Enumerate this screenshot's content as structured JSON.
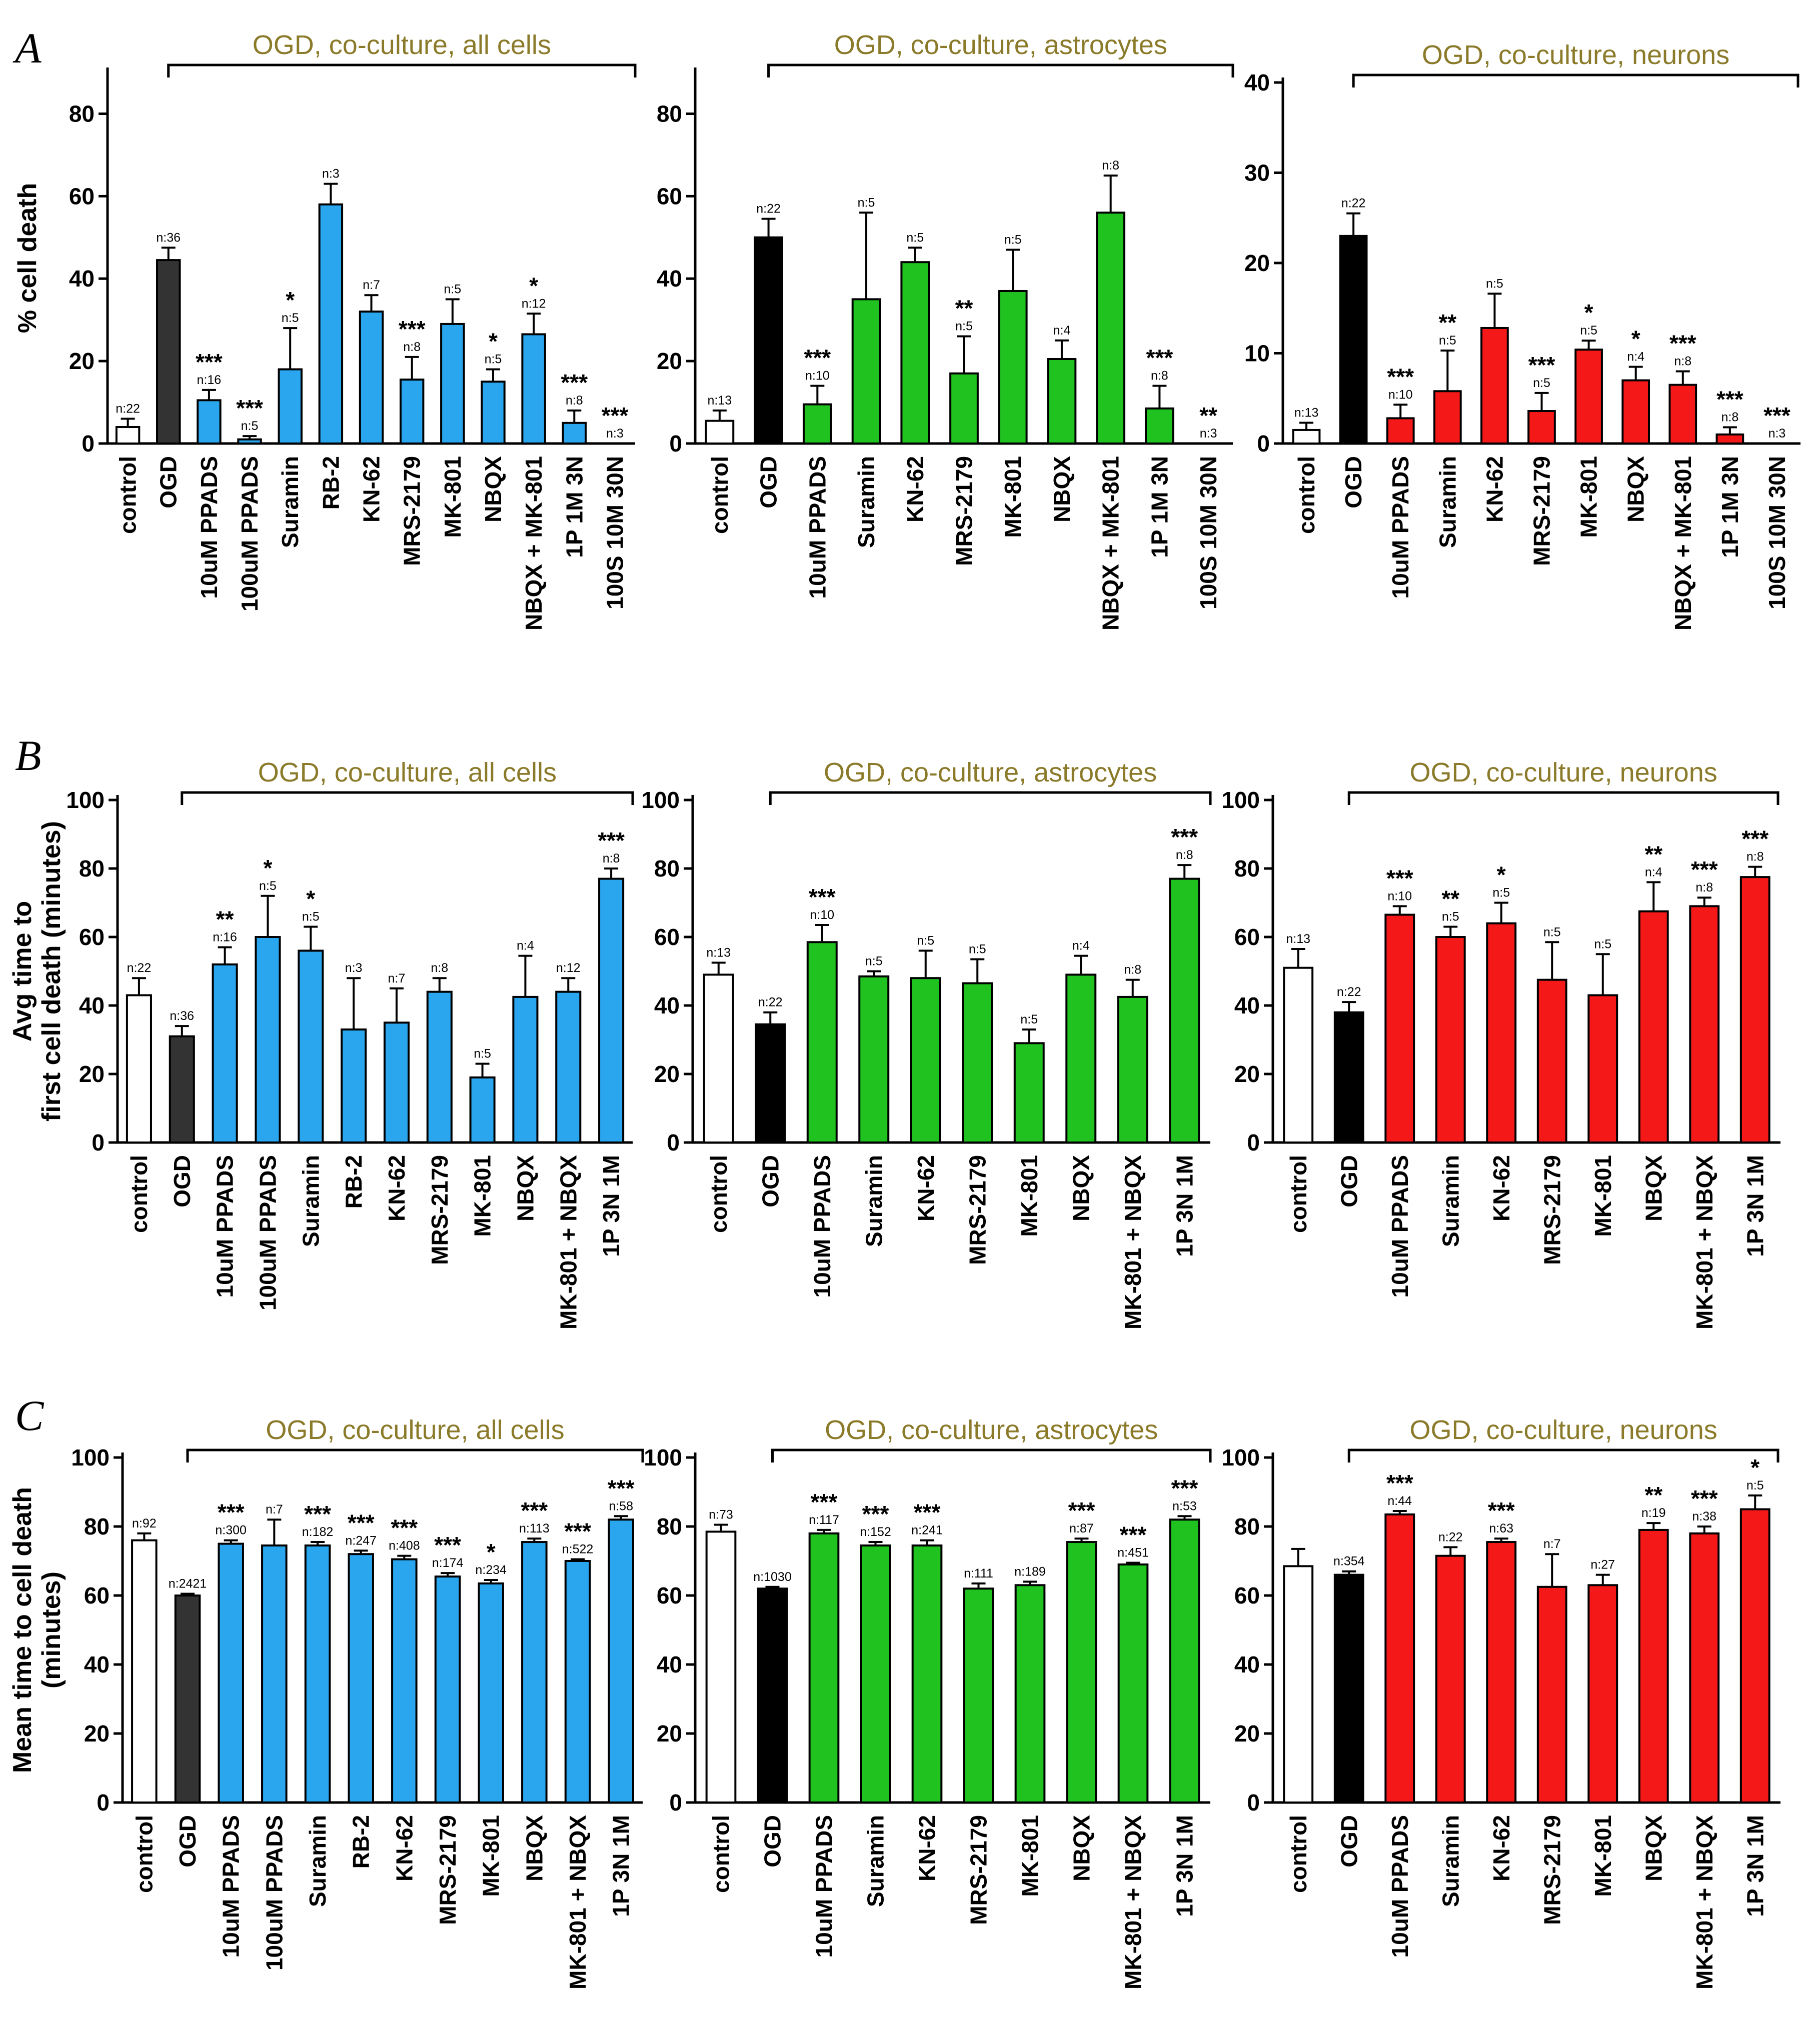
{
  "colors": {
    "blue": "#2aa6ef",
    "green": "#1fc21f",
    "red": "#f51818",
    "dark_gray": "#333333",
    "black": "#000000",
    "white": "#ffffff",
    "title": "#8a7a2a"
  },
  "figure_panels": [
    "A",
    "B",
    "C"
  ],
  "chart_data": [
    {
      "id": "A1",
      "panel": "A",
      "type": "bar",
      "title": "OGD, co-culture, all cells",
      "ylabel": "% cell death",
      "xlabel": "",
      "ylim": [
        0,
        90
      ],
      "yticks": [
        0,
        20,
        40,
        60,
        80
      ],
      "legend": "none",
      "grid": false,
      "categories": [
        "control",
        "OGD",
        "10uM PPADS",
        "100uM PPADS",
        "Suramin",
        "RB-2",
        "KN-62",
        "MRS-2179",
        "MK-801",
        "NBQX",
        "NBQX + MK-801",
        "1P 1M 3N",
        "100S 10M 30N"
      ],
      "values": [
        4,
        44.5,
        10.5,
        1,
        18,
        58,
        32,
        15.5,
        29,
        15,
        26.5,
        5,
        0
      ],
      "errors": [
        2,
        3,
        2.5,
        0.8,
        10,
        5,
        4,
        5.5,
        6,
        3,
        5,
        3,
        0
      ],
      "n": [
        "n:22",
        "n:36",
        "n:16",
        "n:5",
        "n:5",
        "n:3",
        "n:7",
        "n:8",
        "n:5",
        "n:5",
        "n:12",
        "n:8",
        "n:3"
      ],
      "significance": [
        "",
        "",
        "***",
        "***",
        "*",
        "",
        "",
        "***",
        "",
        "*",
        "*",
        "***",
        "***"
      ],
      "bar_colors": [
        "white",
        "dark_gray",
        "blue",
        "blue",
        "blue",
        "blue",
        "blue",
        "blue",
        "blue",
        "blue",
        "blue",
        "blue",
        "blue"
      ]
    },
    {
      "id": "A2",
      "panel": "A",
      "type": "bar",
      "title": "OGD, co-culture, astrocytes",
      "ylabel": "",
      "xlabel": "",
      "ylim": [
        0,
        90
      ],
      "yticks": [
        0,
        20,
        40,
        60,
        80
      ],
      "legend": "none",
      "grid": false,
      "categories": [
        "control",
        "OGD",
        "10uM PPADS",
        "Suramin",
        "KN-62",
        "MRS-2179",
        "MK-801",
        "NBQX",
        "NBQX + MK-801",
        "1P 1M 3N",
        "100S 10M 30N"
      ],
      "values": [
        5.5,
        50,
        9.5,
        35,
        44,
        17,
        37,
        20.5,
        56,
        8.5,
        0
      ],
      "errors": [
        2.5,
        4.5,
        4.5,
        21,
        3.5,
        9,
        10,
        4.5,
        9,
        5.5,
        0
      ],
      "n": [
        "n:13",
        "n:22",
        "n:10",
        "n:5",
        "n:5",
        "n:5",
        "n:5",
        "n:4",
        "n:8",
        "n:8",
        "n:3"
      ],
      "significance": [
        "",
        "",
        "***",
        "",
        "",
        "**",
        "",
        "",
        "",
        "***",
        "**"
      ],
      "bar_colors": [
        "white",
        "black",
        "green",
        "green",
        "green",
        "green",
        "green",
        "green",
        "green",
        "green",
        "green"
      ]
    },
    {
      "id": "A3",
      "panel": "A",
      "type": "bar",
      "title": "OGD, co-culture, neurons",
      "ylabel": "",
      "xlabel": "",
      "ylim": [
        0,
        40
      ],
      "yticks": [
        0,
        10,
        20,
        30,
        40
      ],
      "legend": "none",
      "grid": false,
      "categories": [
        "control",
        "OGD",
        "10uM PPADS",
        "Suramin",
        "KN-62",
        "MRS-2179",
        "MK-801",
        "NBQX",
        "NBQX + MK-801",
        "1P 1M 3N",
        "100S 10M 30N"
      ],
      "values": [
        1.5,
        23,
        2.8,
        5.8,
        12.8,
        3.6,
        10.4,
        7,
        6.5,
        1,
        0
      ],
      "errors": [
        0.8,
        2.5,
        1.5,
        4.5,
        3.8,
        2,
        1,
        1.5,
        1.5,
        0.8,
        0
      ],
      "n": [
        "n:13",
        "n:22",
        "n:10",
        "n:5",
        "n:5",
        "n:5",
        "n:5",
        "n:4",
        "n:8",
        "n:8",
        "n:3"
      ],
      "significance": [
        "",
        "",
        "***",
        "**",
        "",
        "***",
        "*",
        "*",
        "***",
        "***",
        "***"
      ],
      "bar_colors": [
        "white",
        "black",
        "red",
        "red",
        "red",
        "red",
        "red",
        "red",
        "red",
        "red",
        "red"
      ]
    },
    {
      "id": "B1",
      "panel": "B",
      "type": "bar",
      "title": "OGD, co-culture, all cells",
      "ylabel": "Avg time to first cell death (minutes)",
      "ylabel_lines": [
        "Avg time to",
        "first cell death (minutes)"
      ],
      "xlabel": "",
      "ylim": [
        0,
        100
      ],
      "yticks": [
        0,
        20,
        40,
        60,
        80,
        100
      ],
      "legend": "none",
      "grid": false,
      "categories": [
        "control",
        "OGD",
        "10uM PPADS",
        "100uM PPADS",
        "Suramin",
        "RB-2",
        "KN-62",
        "MRS-2179",
        "MK-801",
        "NBQX",
        "MK-801 + NBQX",
        "1P 3N 1M"
      ],
      "values": [
        43,
        31,
        52,
        60,
        56,
        33,
        35,
        44,
        19,
        42.5,
        44,
        77
      ],
      "errors": [
        5,
        3,
        5,
        12,
        7,
        15,
        10,
        4,
        4,
        12,
        4,
        3
      ],
      "n": [
        "n:22",
        "n:36",
        "n:16",
        "n:5",
        "n:5",
        "n:3",
        "n:7",
        "n:8",
        "n:5",
        "n:4",
        "n:12",
        "n:8"
      ],
      "significance": [
        "",
        "",
        "**",
        "*",
        "*",
        "",
        "",
        "",
        "",
        "",
        "",
        "***"
      ],
      "bar_colors": [
        "white",
        "dark_gray",
        "blue",
        "blue",
        "blue",
        "blue",
        "blue",
        "blue",
        "blue",
        "blue",
        "blue",
        "blue"
      ]
    },
    {
      "id": "B2",
      "panel": "B",
      "type": "bar",
      "title": "OGD, co-culture, astrocytes",
      "ylabel": "",
      "xlabel": "",
      "ylim": [
        0,
        100
      ],
      "yticks": [
        0,
        20,
        40,
        60,
        80,
        100
      ],
      "legend": "none",
      "grid": false,
      "categories": [
        "control",
        "OGD",
        "10uM PPADS",
        "Suramin",
        "KN-62",
        "MRS-2179",
        "MK-801",
        "NBQX",
        "MK-801 + NBQX",
        "1P 3N 1M"
      ],
      "values": [
        49,
        34.5,
        58.5,
        48.5,
        48,
        46.5,
        29,
        49,
        42.5,
        77
      ],
      "errors": [
        3.5,
        3.5,
        5,
        1.5,
        8,
        7,
        4,
        5.5,
        5,
        4
      ],
      "n": [
        "n:13",
        "n:22",
        "n:10",
        "n:5",
        "n:5",
        "n:5",
        "n:5",
        "n:4",
        "n:8",
        "n:8"
      ],
      "significance": [
        "",
        "",
        "***",
        "",
        "",
        "",
        "",
        "",
        "",
        "***"
      ],
      "bar_colors": [
        "white",
        "black",
        "green",
        "green",
        "green",
        "green",
        "green",
        "green",
        "green",
        "green"
      ]
    },
    {
      "id": "B3",
      "panel": "B",
      "type": "bar",
      "title": "OGD, co-culture, neurons",
      "ylabel": "",
      "xlabel": "",
      "ylim": [
        0,
        100
      ],
      "yticks": [
        0,
        20,
        40,
        60,
        80,
        100
      ],
      "legend": "none",
      "grid": false,
      "categories": [
        "control",
        "OGD",
        "10uM PPADS",
        "Suramin",
        "KN-62",
        "MRS-2179",
        "MK-801",
        "NBQX",
        "MK-801 + NBQX",
        "1P 3N 1M"
      ],
      "values": [
        51,
        38,
        66.5,
        60,
        64,
        47.5,
        43,
        67.5,
        69,
        77.5
      ],
      "errors": [
        5.5,
        3,
        2.5,
        3,
        6,
        11,
        12,
        8.5,
        2.5,
        3
      ],
      "n": [
        "n:13",
        "n:22",
        "n:10",
        "n:5",
        "n:5",
        "n:5",
        "n:5",
        "n:4",
        "n:8",
        "n:8"
      ],
      "significance": [
        "",
        "",
        "***",
        "**",
        "*",
        "",
        "",
        "**",
        "***",
        "***"
      ],
      "bar_colors": [
        "white",
        "black",
        "red",
        "red",
        "red",
        "red",
        "red",
        "red",
        "red",
        "red"
      ]
    },
    {
      "id": "C1",
      "panel": "C",
      "type": "bar",
      "title": "OGD, co-culture, all cells",
      "ylabel": "Mean time to cell death (minutes)",
      "ylabel_lines": [
        "Mean time to cell death",
        "(minutes)"
      ],
      "xlabel": "",
      "ylim": [
        0,
        100
      ],
      "yticks": [
        0,
        20,
        40,
        60,
        80,
        100
      ],
      "legend": "none",
      "grid": false,
      "categories": [
        "control",
        "OGD",
        "10uM PPADS",
        "100uM PPADS",
        "Suramin",
        "RB-2",
        "KN-62",
        "MRS-2179",
        "MK-801",
        "NBQX",
        "MK-801 + NBQX",
        "1P 3N 1M"
      ],
      "values": [
        76,
        60,
        75,
        74.5,
        74.5,
        72,
        70.5,
        65.5,
        63.5,
        75.5,
        70,
        82
      ],
      "errors": [
        2,
        0.5,
        1,
        7.5,
        1,
        1,
        1,
        1,
        1,
        1,
        0.5,
        1
      ],
      "n": [
        "n:92",
        "n:2421",
        "n:300",
        "n:7",
        "n:182",
        "n:247",
        "n:408",
        "n:174",
        "n:234",
        "n:113",
        "n:522",
        "n:58"
      ],
      "significance": [
        "",
        "",
        "***",
        "",
        "***",
        "***",
        "***",
        "***",
        "*",
        "***",
        "***",
        "***"
      ],
      "bar_colors": [
        "white",
        "dark_gray",
        "blue",
        "blue",
        "blue",
        "blue",
        "blue",
        "blue",
        "blue",
        "blue",
        "blue",
        "blue"
      ]
    },
    {
      "id": "C2",
      "panel": "C",
      "type": "bar",
      "title": "OGD, co-culture, astrocytes",
      "ylabel": "",
      "xlabel": "",
      "ylim": [
        0,
        100
      ],
      "yticks": [
        0,
        20,
        40,
        60,
        80,
        100
      ],
      "legend": "none",
      "grid": false,
      "categories": [
        "control",
        "OGD",
        "10uM PPADS",
        "Suramin",
        "KN-62",
        "MRS-2179",
        "MK-801",
        "NBQX",
        "MK-801 + NBQX",
        "1P 3N 1M"
      ],
      "values": [
        78.5,
        62,
        78,
        74.5,
        74.5,
        62,
        63,
        75.5,
        69,
        82
      ],
      "errors": [
        2,
        0.5,
        1,
        1,
        1.5,
        1.5,
        1,
        1,
        0.5,
        1
      ],
      "n": [
        "n:73",
        "n:1030",
        "n:117",
        "n:152",
        "n:241",
        "n:111",
        "n:189",
        "n:87",
        "n:451",
        "n:53"
      ],
      "significance": [
        "",
        "",
        "***",
        "***",
        "***",
        "",
        "",
        "***",
        "***",
        "***"
      ],
      "bar_colors": [
        "white",
        "black",
        "green",
        "green",
        "green",
        "green",
        "green",
        "green",
        "green",
        "green"
      ]
    },
    {
      "id": "C3",
      "panel": "C",
      "type": "bar",
      "title": "OGD, co-culture, neurons",
      "ylabel": "",
      "xlabel": "",
      "ylim": [
        0,
        100
      ],
      "yticks": [
        0,
        20,
        40,
        60,
        80,
        100
      ],
      "legend": "none",
      "grid": false,
      "categories": [
        "control",
        "OGD",
        "10uM PPADS",
        "Suramin",
        "KN-62",
        "MRS-2179",
        "MK-801",
        "NBQX",
        "MK-801 + NBQX",
        "1P 3N 1M"
      ],
      "values": [
        68.5,
        66,
        83.5,
        71.5,
        75.5,
        62.5,
        63,
        79,
        78,
        85
      ],
      "errors": [
        5,
        1,
        1,
        2.5,
        1,
        9.5,
        3,
        2,
        2,
        4
      ],
      "n": [
        "",
        "n:354",
        "n:44",
        "n:22",
        "n:63",
        "n:7",
        "n:27",
        "n:19",
        "n:38",
        "n:5"
      ],
      "significance": [
        "",
        "",
        "***",
        "",
        "***",
        "",
        "",
        "**",
        "***",
        "*"
      ],
      "bar_colors": [
        "white",
        "black",
        "red",
        "red",
        "red",
        "red",
        "red",
        "red",
        "red",
        "red"
      ]
    }
  ]
}
